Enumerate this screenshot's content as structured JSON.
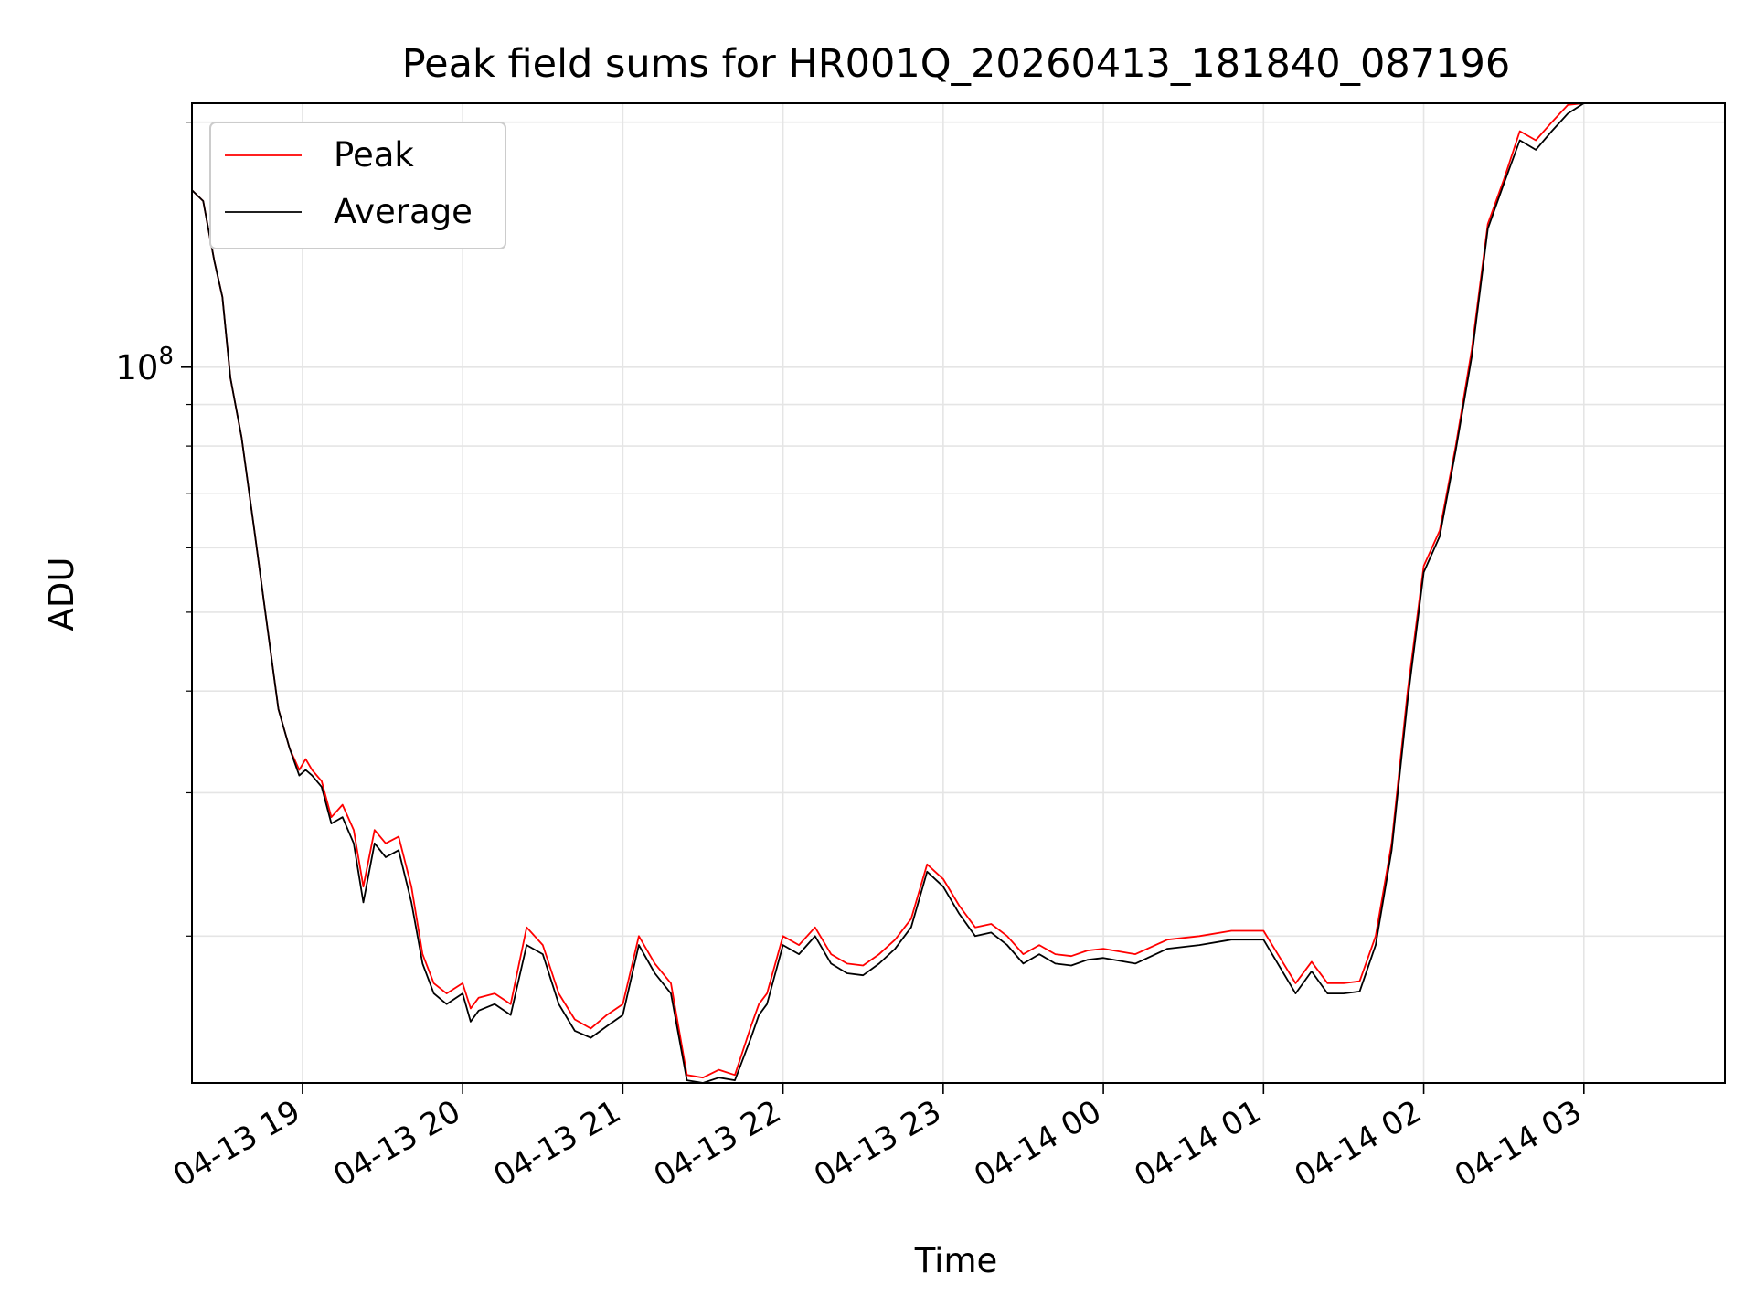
{
  "chart_data": {
    "type": "line",
    "title": "Peak field sums for HR001Q_20260413_181840_087196",
    "xlabel": "Time",
    "ylabel": "ADU",
    "yscale": "log",
    "x_tick_labels": [
      "04-13 19",
      "04-13 20",
      "04-13 21",
      "04-13 22",
      "04-13 23",
      "04-14 00",
      "04-14 01",
      "04-14 02",
      "04-14 03"
    ],
    "y_tick_label": {
      "base": "10",
      "exponent": "8"
    },
    "xlim_hours_since_0413_18": [
      0.31,
      9.88
    ],
    "ylim": [
      13200000,
      211000000
    ],
    "grid": true,
    "legend_position": "upper-left",
    "series": [
      {
        "name": "Peak",
        "color": "#ff0000",
        "x_hours": [
          0.31,
          0.38,
          0.45,
          0.5,
          0.55,
          0.62,
          0.7,
          0.78,
          0.85,
          0.92,
          0.98,
          1.02,
          1.06,
          1.12,
          1.18,
          1.25,
          1.32,
          1.38,
          1.45,
          1.52,
          1.6,
          1.68,
          1.75,
          1.82,
          1.9,
          2.0,
          2.05,
          2.1,
          2.2,
          2.3,
          2.4,
          2.5,
          2.6,
          2.7,
          2.8,
          2.9,
          3.0,
          3.1,
          3.2,
          3.3,
          3.4,
          3.5,
          3.6,
          3.7,
          3.8,
          3.85,
          3.9,
          4.0,
          4.1,
          4.2,
          4.3,
          4.4,
          4.5,
          4.6,
          4.7,
          4.8,
          4.9,
          5.0,
          5.1,
          5.2,
          5.3,
          5.4,
          5.5,
          5.6,
          5.7,
          5.8,
          5.9,
          6.0,
          6.2,
          6.4,
          6.6,
          6.8,
          7.0,
          7.2,
          7.3,
          7.4,
          7.5,
          7.6,
          7.7,
          7.8,
          7.9,
          8.0,
          8.1,
          8.2,
          8.3,
          8.4,
          8.5,
          8.6,
          8.7,
          8.8,
          8.9,
          9.0,
          9.1,
          9.2,
          9.25,
          9.3,
          9.35,
          9.4,
          9.45,
          9.5,
          9.55,
          9.6,
          9.65,
          9.7,
          9.75,
          9.8,
          9.85,
          9.88
        ],
        "values": [
          165000000,
          160000000,
          135000000,
          122000000,
          97000000,
          82000000,
          63000000,
          48000000,
          38000000,
          34000000,
          32000000,
          33000000,
          32000000,
          31000000,
          28000000,
          29000000,
          27000000,
          23000000,
          27000000,
          26000000,
          26500000,
          23000000,
          19000000,
          17500000,
          17000000,
          17500000,
          16300000,
          16800000,
          17000000,
          16500000,
          20500000,
          19500000,
          17000000,
          15800000,
          15400000,
          16000000,
          16500000,
          20000000,
          18500000,
          17500000,
          13500000,
          13400000,
          13700000,
          13500000,
          15500000,
          16500000,
          17000000,
          20000000,
          19500000,
          20500000,
          19000000,
          18500000,
          18400000,
          19000000,
          19800000,
          21000000,
          24500000,
          23500000,
          21800000,
          20500000,
          20700000,
          20000000,
          19000000,
          19500000,
          19000000,
          18900000,
          19200000,
          19300000,
          19000000,
          19800000,
          20000000,
          20300000,
          20300000,
          17500000,
          18600000,
          17500000,
          17500000,
          17600000,
          20000000,
          26000000,
          40000000,
          57000000,
          63000000,
          80000000,
          105000000,
          150000000,
          170000000,
          195000000,
          190000000,
          200000000,
          210000000,
          211000000,
          211000000,
          211000000,
          211000000,
          211000000,
          211000000,
          211000000,
          211000000,
          211000000,
          211000000,
          211000000,
          211000000,
          211000000,
          211000000,
          211000000,
          211000000,
          211000000
        ]
      },
      {
        "name": "Average",
        "color": "#000000",
        "x_hours": [
          0.31,
          0.38,
          0.45,
          0.5,
          0.55,
          0.62,
          0.7,
          0.78,
          0.85,
          0.92,
          0.98,
          1.02,
          1.06,
          1.12,
          1.18,
          1.25,
          1.32,
          1.38,
          1.45,
          1.52,
          1.6,
          1.68,
          1.75,
          1.82,
          1.9,
          2.0,
          2.05,
          2.1,
          2.2,
          2.3,
          2.4,
          2.5,
          2.6,
          2.7,
          2.8,
          2.9,
          3.0,
          3.1,
          3.2,
          3.3,
          3.4,
          3.5,
          3.6,
          3.7,
          3.8,
          3.85,
          3.9,
          4.0,
          4.1,
          4.2,
          4.3,
          4.4,
          4.5,
          4.6,
          4.7,
          4.8,
          4.9,
          5.0,
          5.1,
          5.2,
          5.3,
          5.4,
          5.5,
          5.6,
          5.7,
          5.8,
          5.9,
          6.0,
          6.2,
          6.4,
          6.6,
          6.8,
          7.0,
          7.2,
          7.3,
          7.4,
          7.5,
          7.6,
          7.7,
          7.8,
          7.9,
          8.0,
          8.1,
          8.2,
          8.3,
          8.4,
          8.5,
          8.6,
          8.7,
          8.8,
          8.9,
          9.0,
          9.1,
          9.2,
          9.25,
          9.3,
          9.35,
          9.4,
          9.45,
          9.5,
          9.55,
          9.6,
          9.65,
          9.7,
          9.75,
          9.8,
          9.85,
          9.88
        ],
        "values": [
          165000000,
          160000000,
          135000000,
          122000000,
          97000000,
          82000000,
          63000000,
          48000000,
          38000000,
          34000000,
          31500000,
          32000000,
          31500000,
          30500000,
          27500000,
          28000000,
          26000000,
          22000000,
          26000000,
          25000000,
          25500000,
          22000000,
          18500000,
          17000000,
          16500000,
          17000000,
          15700000,
          16200000,
          16500000,
          16000000,
          19500000,
          19000000,
          16500000,
          15300000,
          15000000,
          15500000,
          16000000,
          19500000,
          18000000,
          17000000,
          13300000,
          13200000,
          13400000,
          13300000,
          15000000,
          16000000,
          16500000,
          19500000,
          19000000,
          20000000,
          18500000,
          18000000,
          17900000,
          18500000,
          19300000,
          20500000,
          24000000,
          23000000,
          21300000,
          20000000,
          20200000,
          19500000,
          18500000,
          19000000,
          18500000,
          18400000,
          18700000,
          18800000,
          18500000,
          19300000,
          19500000,
          19800000,
          19800000,
          17000000,
          18100000,
          17000000,
          17000000,
          17100000,
          19500000,
          25500000,
          39000000,
          56000000,
          62000000,
          79000000,
          103000000,
          148000000,
          168000000,
          190000000,
          185000000,
          195000000,
          205000000,
          211000000,
          211000000,
          211000000,
          211000000,
          211000000,
          211000000,
          211000000,
          211000000,
          211000000,
          211000000,
          211000000,
          211000000,
          211000000,
          211000000,
          211000000,
          211000000,
          211000000
        ]
      }
    ]
  }
}
